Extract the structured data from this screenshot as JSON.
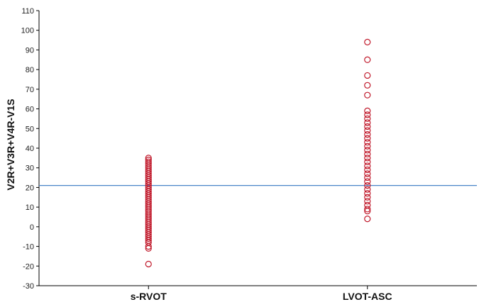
{
  "chart_data": {
    "type": "scatter",
    "title": "",
    "xlabel": "",
    "ylabel": "V2R+V3R+V4R-V1S",
    "categories": [
      "s-RVOT",
      "LVOT-ASC"
    ],
    "ylim": [
      -30,
      110
    ],
    "yticks": [
      -30,
      -20,
      -10,
      0,
      10,
      20,
      30,
      40,
      50,
      60,
      70,
      80,
      90,
      100,
      110
    ],
    "reference_line": {
      "y": 21,
      "color": "#4a86c8"
    },
    "marker_color": "#c0182a",
    "grid": false,
    "series": [
      {
        "category": "s-RVOT",
        "values": [
          35,
          34,
          33,
          32,
          31,
          30,
          29,
          28,
          27,
          26,
          25,
          24,
          23,
          22,
          21,
          20,
          19,
          18,
          17,
          16,
          15,
          14,
          13,
          12,
          11,
          10,
          9,
          8,
          7,
          6,
          5,
          4,
          3,
          2,
          1,
          0,
          -1,
          -2,
          -3,
          -4,
          -5,
          -6,
          -7,
          -8,
          -10,
          -11,
          -19
        ]
      },
      {
        "category": "LVOT-ASC",
        "values": [
          94,
          85,
          77,
          72,
          67,
          59,
          57,
          55,
          53,
          51,
          49,
          47,
          45,
          43,
          41,
          39,
          37,
          35,
          33,
          31,
          29,
          27,
          25,
          23,
          21,
          19,
          17,
          15,
          13,
          11,
          9,
          8,
          4
        ]
      }
    ]
  }
}
